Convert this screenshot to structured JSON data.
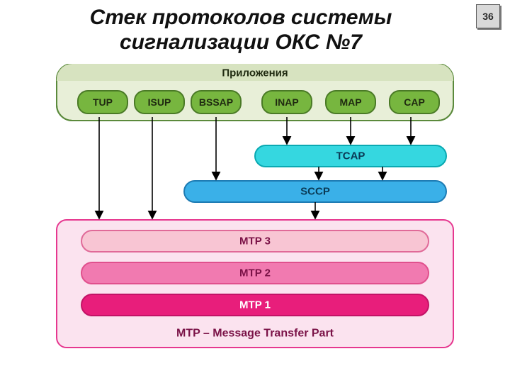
{
  "page_number": "36",
  "title": "Стек протоколов системы сигнализации ОКС №7",
  "diagram": {
    "type": "flowchart",
    "colors": {
      "app_container_fill": "#e8efd8",
      "app_container_stroke": "#5b8a3c",
      "header_fill": "#d7e3c0",
      "app_pill_fill": "#77b63f",
      "app_pill_stroke": "#4a7a26",
      "tcap_fill": "#35d7e0",
      "tcap_stroke": "#0aa9b2",
      "sccp_fill": "#3ab0e8",
      "sccp_stroke": "#1d7bb3",
      "mtp_container_fill": "#fbe3ef",
      "mtp_container_stroke": "#e6378f",
      "mtp3_fill": "#f8c5d3",
      "mtp3_stroke": "#e06a98",
      "mtp2_fill": "#f17ab0",
      "mtp2_stroke": "#e0508d",
      "mtp1_fill": "#e81e7b",
      "mtp1_stroke": "#c21366",
      "text_dark": "#1f2a10",
      "text_blue": "#0a3a55",
      "text_pink": "#7a1247",
      "text_white": "#ffffff"
    },
    "applications": {
      "header": "Приложения",
      "items": [
        "TUP",
        "ISUP",
        "BSSAP",
        "INAP",
        "MAP",
        "CAP"
      ]
    },
    "tcap": "TCAP",
    "sccp": "SCCP",
    "mtp": {
      "caption": "MTP – Message Transfer Part",
      "layers": [
        "MTP 3",
        "MTP 2",
        "MTP 1"
      ]
    }
  }
}
